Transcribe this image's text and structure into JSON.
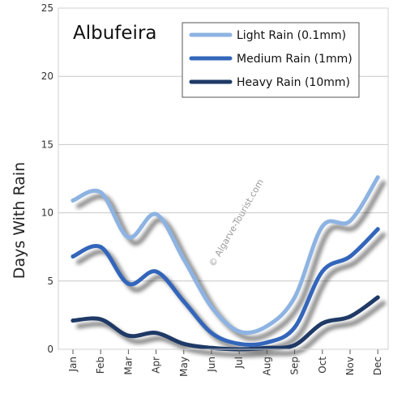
{
  "chart_data": {
    "type": "line",
    "title": "Albufeira",
    "ylabel": "Days With Rain",
    "xlabel": "",
    "categories": [
      "Jan",
      "Feb",
      "Mar",
      "Apr",
      "May",
      "Jun",
      "Jul",
      "Aug",
      "Sep",
      "Oct",
      "Nov",
      "Dec"
    ],
    "ylim": [
      0,
      25
    ],
    "yticks": [
      0,
      5,
      10,
      15,
      20,
      25
    ],
    "grid": true,
    "legend_position": "top-right",
    "watermark": "© Algarve-Tourist.com",
    "series": [
      {
        "name": "Light Rain (0.1mm)",
        "color": "#8db3e2",
        "values": [
          10.9,
          11.5,
          8.2,
          9.9,
          6.6,
          3.1,
          1.3,
          1.7,
          3.8,
          9.0,
          9.4,
          12.6
        ]
      },
      {
        "name": "Medium Rain (1mm)",
        "color": "#3366bb",
        "values": [
          6.8,
          7.5,
          4.8,
          5.7,
          3.5,
          1.2,
          0.4,
          0.5,
          1.6,
          5.7,
          6.8,
          8.8
        ]
      },
      {
        "name": "Heavy Rain (10mm)",
        "color": "#1f3a66",
        "values": [
          2.1,
          2.2,
          1.0,
          1.2,
          0.4,
          0.1,
          0.0,
          0.1,
          0.3,
          1.9,
          2.4,
          3.8
        ]
      }
    ]
  }
}
